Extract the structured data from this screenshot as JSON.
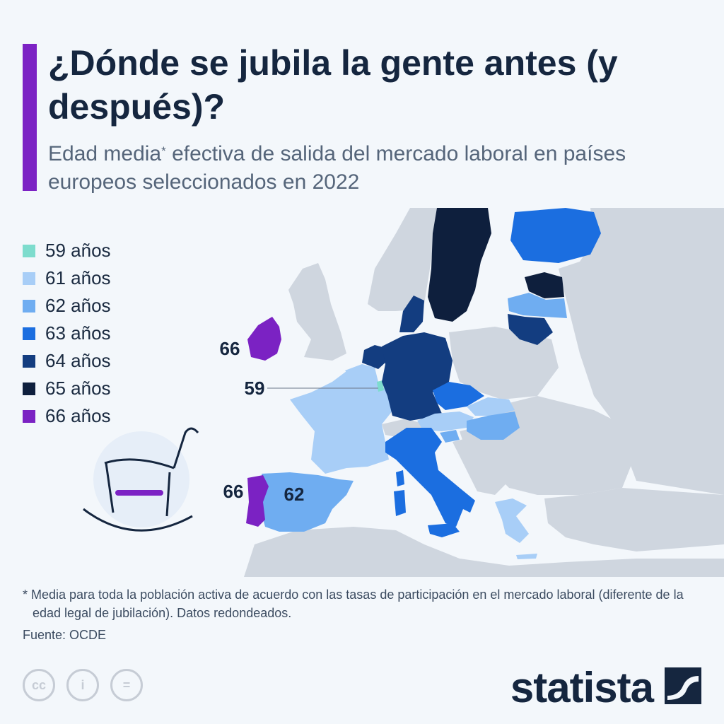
{
  "header": {
    "title": "¿Dónde se jubila la gente antes (y después)?",
    "subtitle_pre": "Edad media",
    "subtitle_mark": "*",
    "subtitle_post": " efectiva de salida del mercado laboral en países europeos seleccionados en 2022"
  },
  "colors": {
    "accent": "#7c22c4",
    "age_59": "#7ddccd",
    "age_61": "#a8cef7",
    "age_62": "#6fadf1",
    "age_63": "#1b6ee0",
    "age_64": "#133d80",
    "age_65": "#0e1f3d",
    "age_66": "#7b22c3",
    "no_data": "#cfd6df"
  },
  "legend": [
    {
      "label": "59 años",
      "color": "#7ddccd"
    },
    {
      "label": "61 años",
      "color": "#a8cef7"
    },
    {
      "label": "62 años",
      "color": "#6fadf1"
    },
    {
      "label": "63 años",
      "color": "#1b6ee0"
    },
    {
      "label": "64 años",
      "color": "#133d80"
    },
    {
      "label": "65 años",
      "color": "#0e1f3d"
    },
    {
      "label": "66 años",
      "color": "#7b22c3"
    }
  ],
  "map": {
    "annotations": {
      "ireland": "66",
      "luxembourg": "59",
      "portugal": "66",
      "spain": "62"
    },
    "countries": [
      {
        "name": "Ireland",
        "age": 66
      },
      {
        "name": "Luxembourg",
        "age": 59
      },
      {
        "name": "Portugal",
        "age": 66
      },
      {
        "name": "Spain",
        "age": 62
      },
      {
        "name": "France",
        "age": 61
      },
      {
        "name": "Belgium",
        "age": 61
      },
      {
        "name": "Germany",
        "age": 64
      },
      {
        "name": "Netherlands",
        "age": 64
      },
      {
        "name": "Denmark",
        "age": 64
      },
      {
        "name": "Sweden",
        "age": 65
      },
      {
        "name": "Finland",
        "age": 63
      },
      {
        "name": "Estonia",
        "age": 65
      },
      {
        "name": "Latvia",
        "age": 62
      },
      {
        "name": "Lithuania",
        "age": 64
      },
      {
        "name": "Czechia",
        "age": 63
      },
      {
        "name": "Austria",
        "age": 61
      },
      {
        "name": "Slovakia",
        "age": 61
      },
      {
        "name": "Hungary",
        "age": 62
      },
      {
        "name": "Slovenia",
        "age": 62
      },
      {
        "name": "Italy",
        "age": 63
      },
      {
        "name": "Greece",
        "age": 61
      }
    ]
  },
  "footer": {
    "footnote": "* Media para toda la población activa de acuerdo con las tasas de participación en el mercado laboral (diferente de la edad legal de jubilación). Datos redondeados.",
    "source": "Fuente: OCDE",
    "brand": "statista",
    "cc_icons": [
      "cc",
      "i",
      "="
    ]
  }
}
